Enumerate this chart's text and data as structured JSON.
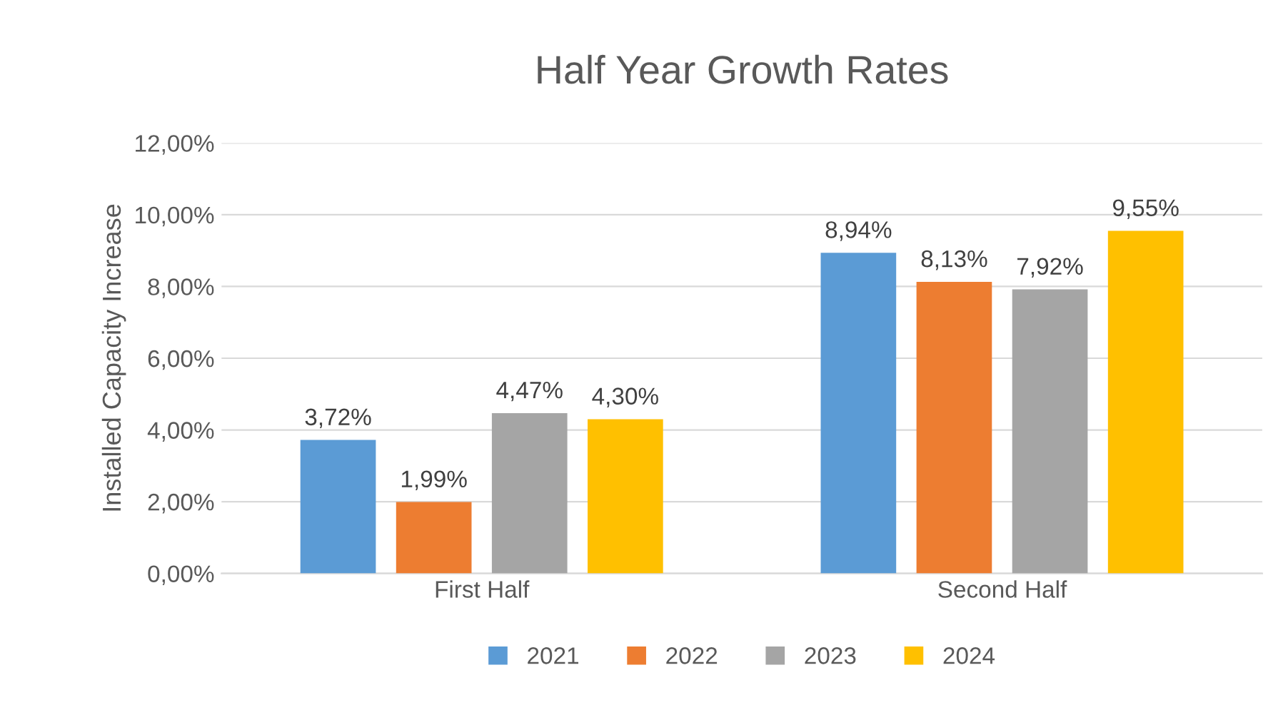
{
  "chart_data": {
    "type": "bar",
    "title": "Half Year Growth Rates",
    "ylabel": "Installed Capacity Increase",
    "categories": [
      "First Half",
      "Second Half"
    ],
    "series": [
      {
        "name": "2021",
        "color": "#5b9bd5",
        "values": [
          3.72,
          8.94
        ],
        "value_labels": [
          "3,72%",
          "8,94%"
        ]
      },
      {
        "name": "2022",
        "color": "#ed7d31",
        "values": [
          1.99,
          8.13
        ],
        "value_labels": [
          "1,99%",
          "8,13%"
        ]
      },
      {
        "name": "2023",
        "color": "#a5a5a5",
        "values": [
          4.47,
          7.92
        ],
        "value_labels": [
          "4,47%",
          "7,92%"
        ]
      },
      {
        "name": "2024",
        "color": "#ffc000",
        "values": [
          4.3,
          9.55
        ],
        "value_labels": [
          "4,30%",
          "9,55%"
        ]
      }
    ],
    "ylim": [
      0,
      12
    ],
    "yticks": [
      {
        "value": 0,
        "label": "0,00%"
      },
      {
        "value": 2,
        "label": "2,00%"
      },
      {
        "value": 4,
        "label": "4,00%"
      },
      {
        "value": 6,
        "label": "6,00%"
      },
      {
        "value": 8,
        "label": "8,00%"
      },
      {
        "value": 10,
        "label": "10,00%"
      },
      {
        "value": 12,
        "label": "12,00%"
      }
    ],
    "grid": "y",
    "legend": "bottom"
  }
}
